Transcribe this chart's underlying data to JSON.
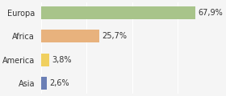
{
  "categories": [
    "Asia",
    "America",
    "Africa",
    "Europa"
  ],
  "values": [
    2.6,
    3.8,
    25.7,
    67.9
  ],
  "labels": [
    "2,6%",
    "3,8%",
    "25,7%",
    "67,9%"
  ],
  "bar_colors": [
    "#6b7fb5",
    "#f0d060",
    "#e8b27d",
    "#a8c48a"
  ],
  "background_color": "#f5f5f5",
  "xlim": [
    0,
    80
  ],
  "label_fontsize": 7,
  "tick_fontsize": 7
}
